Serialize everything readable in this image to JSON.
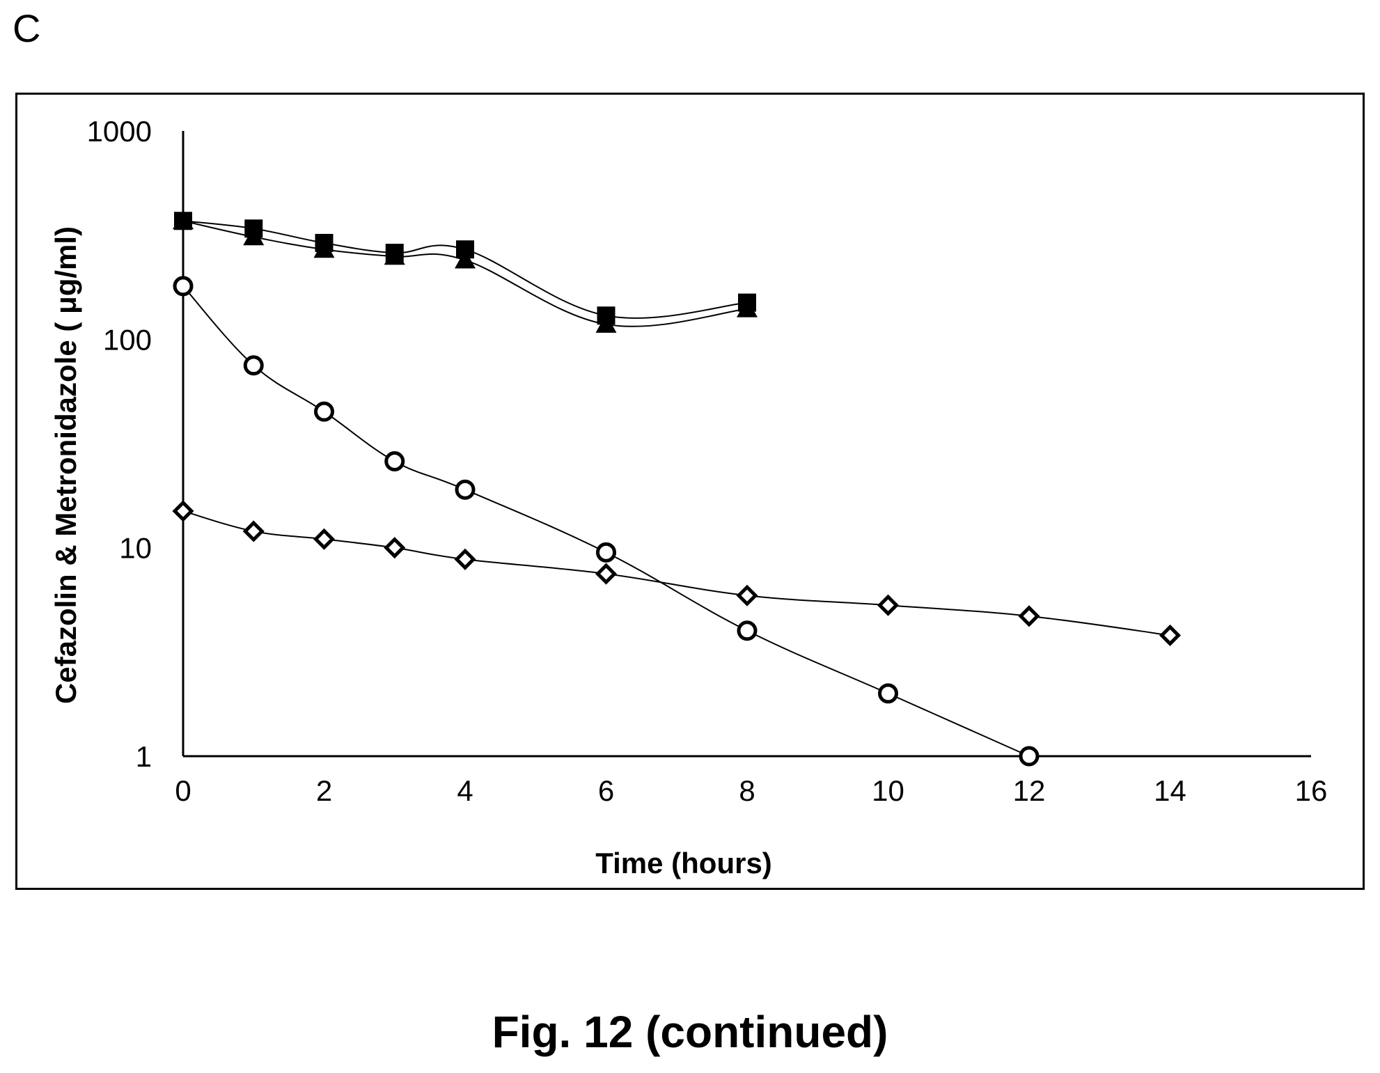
{
  "panel_label": "C",
  "caption": "Fig. 12 (continued)",
  "chart_data": {
    "type": "line",
    "title": "",
    "xlabel": "Time (hours)",
    "ylabel": "Cefazolin & Metronidazole ( μg/ml)",
    "xlim": [
      0,
      16
    ],
    "ylim": [
      1,
      1000
    ],
    "yscale": "log",
    "x_ticks": [
      "0",
      "2",
      "4",
      "6",
      "8",
      "10",
      "12",
      "14",
      "16"
    ],
    "y_ticks": [
      "1",
      "10",
      "100",
      "1000"
    ],
    "grid": false,
    "legend": "none",
    "series": [
      {
        "marker": "square",
        "color": "#000000",
        "x": [
          0,
          1,
          2,
          3,
          4,
          6,
          8
        ],
        "y": [
          370,
          340,
          290,
          260,
          270,
          130,
          150
        ]
      },
      {
        "marker": "triangle",
        "color": "#000000",
        "x": [
          0,
          1,
          2,
          3,
          4,
          6,
          8
        ],
        "y": [
          370,
          310,
          270,
          250,
          240,
          118,
          140
        ]
      },
      {
        "marker": "circle-open",
        "color": "#000000",
        "x": [
          0,
          1,
          2,
          3,
          4,
          6,
          8,
          10,
          12
        ],
        "y": [
          180,
          75,
          45,
          26,
          19,
          9.5,
          4,
          2,
          1
        ]
      },
      {
        "marker": "diamond-open",
        "color": "#000000",
        "x": [
          0,
          1,
          2,
          3,
          4,
          6,
          8,
          10,
          12,
          14
        ],
        "y": [
          15,
          12,
          11,
          10,
          8.8,
          7.5,
          5.9,
          5.3,
          4.7,
          3.8
        ]
      }
    ]
  }
}
